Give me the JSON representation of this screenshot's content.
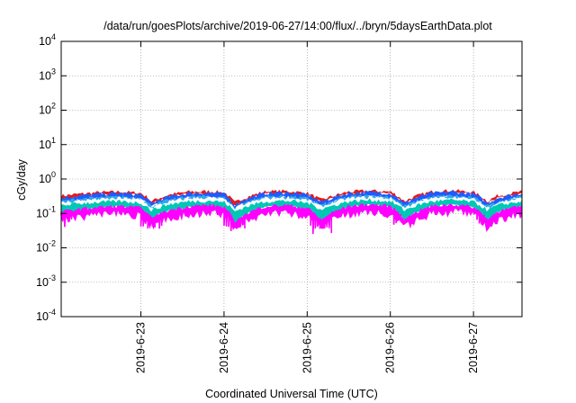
{
  "chart_data": {
    "type": "area",
    "title": "/data/run/goesPlots/archive/2019-06-27/14:00/flux/../bryn/5daysEarthData.plot",
    "xlabel": "Coordinated Universal Time (UTC)",
    "ylabel": "cGy/day",
    "yscale": "log",
    "ylim": [
      0.0001,
      10000
    ],
    "yticks": [
      {
        "base": "10",
        "exp": "-4",
        "value": 0.0001
      },
      {
        "base": "10",
        "exp": "-3",
        "value": 0.001
      },
      {
        "base": "10",
        "exp": "-2",
        "value": 0.01
      },
      {
        "base": "10",
        "exp": "-1",
        "value": 0.1
      },
      {
        "base": "10",
        "exp": "0",
        "value": 1
      },
      {
        "base": "10",
        "exp": "1",
        "value": 10
      },
      {
        "base": "10",
        "exp": "2",
        "value": 100
      },
      {
        "base": "10",
        "exp": "3",
        "value": 1000
      },
      {
        "base": "10",
        "exp": "4",
        "value": 10000
      }
    ],
    "xlim": [
      "2019-06-22T01:00",
      "2019-06-27T14:00"
    ],
    "xticks": [
      "2019-6-23",
      "2019-6-24",
      "2019-6-25",
      "2019-6-26",
      "2019-6-27"
    ],
    "grid": true,
    "x_days": [
      "2019-06-22T01:00",
      "2019-06-22T06:00",
      "2019-06-22T12:00",
      "2019-06-22T18:00",
      "2019-06-23T00:00",
      "2019-06-23T03:00",
      "2019-06-23T08:00",
      "2019-06-23T14:00",
      "2019-06-23T20:00",
      "2019-06-24T00:00",
      "2019-06-24T03:00",
      "2019-06-24T06:00",
      "2019-06-24T12:00",
      "2019-06-24T18:00",
      "2019-06-25T00:00",
      "2019-06-25T04:00",
      "2019-06-25T07:00",
      "2019-06-25T12:00",
      "2019-06-25T18:00",
      "2019-06-26T00:00",
      "2019-06-26T04:00",
      "2019-06-26T07:00",
      "2019-06-26T12:00",
      "2019-06-26T18:00",
      "2019-06-27T00:00",
      "2019-06-27T04:00",
      "2019-06-27T07:00",
      "2019-06-27T14:00"
    ],
    "series": [
      {
        "color": "#e41a1c",
        "values": [
          0.32,
          0.36,
          0.4,
          0.42,
          0.38,
          0.22,
          0.34,
          0.42,
          0.43,
          0.4,
          0.2,
          0.28,
          0.42,
          0.44,
          0.38,
          0.24,
          0.3,
          0.42,
          0.45,
          0.42,
          0.22,
          0.3,
          0.42,
          0.46,
          0.4,
          0.22,
          0.32,
          0.42
        ]
      },
      {
        "color": "#1f5bff",
        "values": [
          0.28,
          0.32,
          0.36,
          0.38,
          0.34,
          0.19,
          0.3,
          0.38,
          0.39,
          0.36,
          0.17,
          0.25,
          0.38,
          0.4,
          0.34,
          0.21,
          0.27,
          0.38,
          0.41,
          0.38,
          0.19,
          0.27,
          0.38,
          0.42,
          0.36,
          0.19,
          0.28,
          0.38
        ]
      },
      {
        "color": "#2fa8e8",
        "values": [
          0.22,
          0.26,
          0.28,
          0.3,
          0.27,
          0.16,
          0.24,
          0.3,
          0.31,
          0.28,
          0.14,
          0.2,
          0.3,
          0.31,
          0.27,
          0.17,
          0.21,
          0.3,
          0.32,
          0.3,
          0.16,
          0.21,
          0.3,
          0.32,
          0.28,
          0.16,
          0.22,
          0.3
        ]
      },
      {
        "color": "#ffffff",
        "values": [
          0.2,
          0.23,
          0.25,
          0.27,
          0.24,
          0.14,
          0.21,
          0.27,
          0.28,
          0.25,
          0.13,
          0.18,
          0.27,
          0.28,
          0.24,
          0.15,
          0.19,
          0.27,
          0.29,
          0.27,
          0.14,
          0.19,
          0.27,
          0.29,
          0.25,
          0.14,
          0.2,
          0.27
        ]
      },
      {
        "color": "#00c8b4",
        "values": [
          0.17,
          0.19,
          0.21,
          0.22,
          0.2,
          0.12,
          0.18,
          0.22,
          0.23,
          0.21,
          0.11,
          0.15,
          0.22,
          0.23,
          0.2,
          0.13,
          0.16,
          0.22,
          0.24,
          0.22,
          0.12,
          0.16,
          0.22,
          0.24,
          0.21,
          0.12,
          0.17,
          0.22
        ]
      },
      {
        "color": "#ff00ff",
        "values": [
          0.11,
          0.13,
          0.15,
          0.16,
          0.14,
          0.07,
          0.12,
          0.16,
          0.17,
          0.15,
          0.05,
          0.09,
          0.16,
          0.17,
          0.14,
          0.06,
          0.1,
          0.16,
          0.18,
          0.16,
          0.06,
          0.1,
          0.16,
          0.18,
          0.15,
          0.06,
          0.11,
          0.16
        ]
      }
    ],
    "magenta_dips": [
      0.04,
      0.035,
      0.03,
      0.025,
      0.04,
      0.05
    ]
  }
}
